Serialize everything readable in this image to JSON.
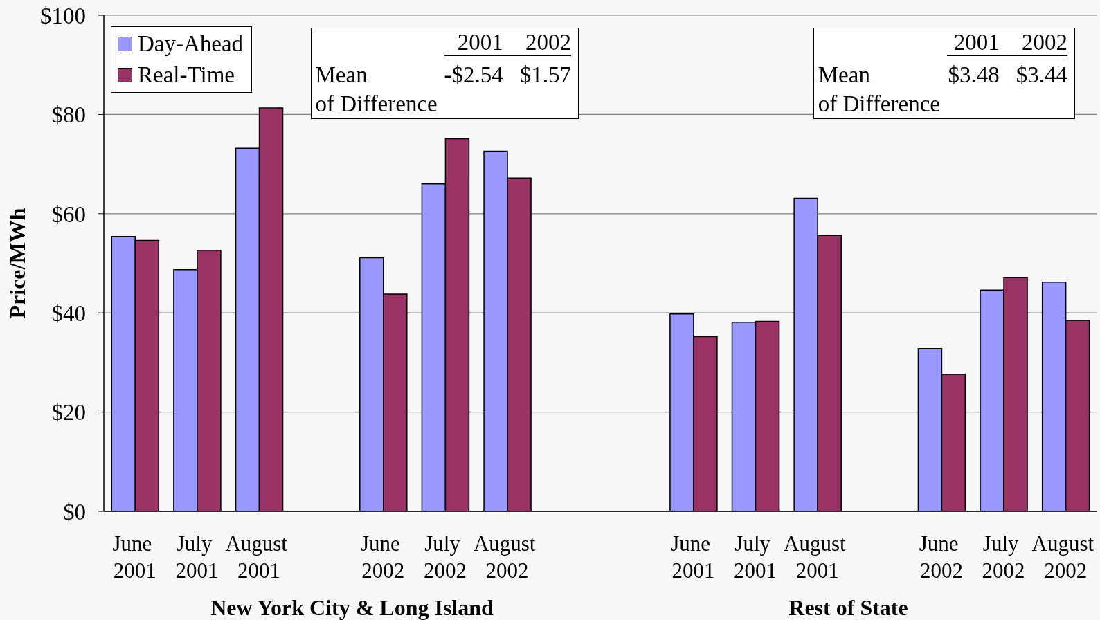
{
  "chart_data": [
    {
      "type": "bar",
      "categories": [
        "June 2001",
        "July 2001",
        "August 2001",
        null,
        "June 2002",
        "July 2002",
        "August 2002",
        null
      ],
      "series": [
        {
          "name": "Day-Ahead",
          "color": "#9999ff",
          "values": [
            55.4,
            48.7,
            73.2,
            null,
            51.1,
            66.0,
            72.6,
            null
          ]
        },
        {
          "name": "Real-Time",
          "color": "#993366",
          "values": [
            54.6,
            52.6,
            81.3,
            null,
            43.8,
            75.1,
            67.2,
            null
          ]
        }
      ],
      "xlabel": "New York City & Long Island",
      "ylabel": "Price/MWh",
      "ylim": [
        0,
        100
      ],
      "yticks": [
        {
          "value": 0,
          "label": "$0"
        },
        {
          "value": 20,
          "label": "$20"
        },
        {
          "value": 40,
          "label": "$40"
        },
        {
          "value": 60,
          "label": "$60"
        },
        {
          "value": 80,
          "label": "$80"
        },
        {
          "value": 100,
          "label": "$100"
        }
      ],
      "grid": "y",
      "legend": "top left",
      "annotations": [
        "2001",
        "2002",
        "Mean of Difference",
        "-$2.54",
        "$1.57"
      ]
    },
    {
      "type": "bar",
      "categories": [
        null,
        "June 2001",
        "July 2001",
        "August 2001",
        null,
        "June 2002",
        "July 2002",
        "August 2002"
      ],
      "series": [
        {
          "color": "#9999ff",
          "values": [
            null,
            39.8,
            38.1,
            63.1,
            null,
            32.8,
            44.6,
            46.2
          ]
        },
        {
          "color": "#993366",
          "values": [
            null,
            35.2,
            38.3,
            55.6,
            null,
            27.6,
            47.1,
            38.5
          ]
        }
      ],
      "xlabel": "Rest of State",
      "ylim": [
        0,
        100
      ],
      "yticks": [
        0,
        20,
        40,
        60,
        80,
        100
      ],
      "tick_labels": "x",
      "grid": "y",
      "annotations": [
        "2001",
        "2002",
        "Mean of Difference",
        "$3.48",
        "$3.44"
      ]
    }
  ]
}
